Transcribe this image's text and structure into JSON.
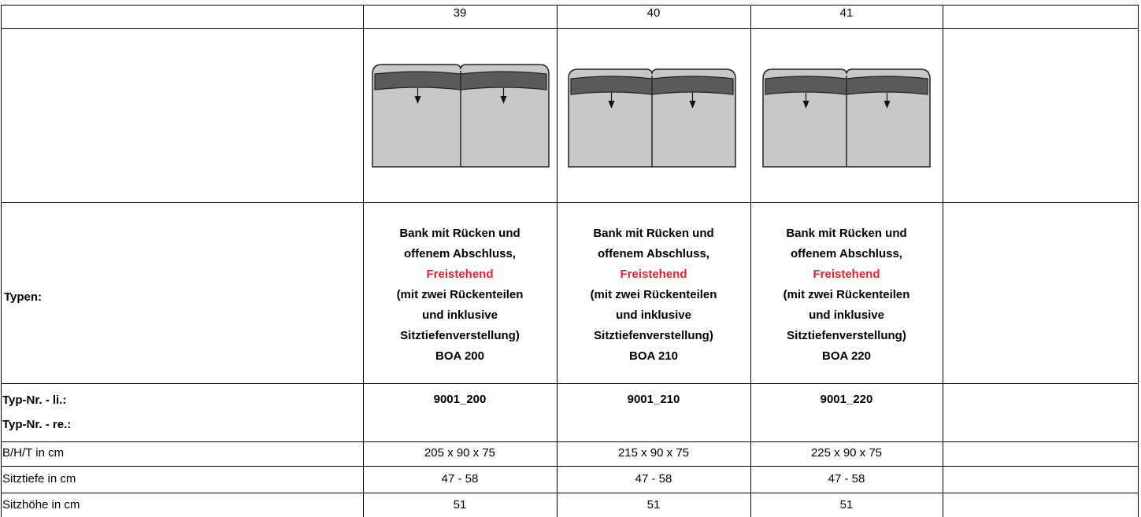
{
  "header": {
    "columns": [
      "39",
      "40",
      "41"
    ]
  },
  "types": {
    "label": "Typen:",
    "items": [
      {
        "intro": [
          "Bank mit Rücken und",
          "offenem Abschluss,"
        ],
        "highlight": "Freistehend",
        "details": [
          "(mit zwei Rückenteilen",
          "und inklusive",
          "Sitztiefenverstellung)"
        ],
        "model": "BOA 200"
      },
      {
        "intro": [
          "Bank mit Rücken und",
          "offenem Abschluss,"
        ],
        "highlight": "Freistehend",
        "details": [
          "(mit zwei Rückenteilen",
          "und inklusive",
          "Sitztiefenverstellung)"
        ],
        "model": "BOA 210"
      },
      {
        "intro": [
          "Bank mit Rücken und",
          "offenem Abschluss,"
        ],
        "highlight": "Freistehend",
        "details": [
          "(mit zwei Rückenteilen",
          "und inklusive",
          "Sitztiefenverstellung)"
        ],
        "model": "BOA 220"
      }
    ]
  },
  "type_numbers": {
    "label_left": "Typ-Nr. - li.:",
    "label_right": "Typ-Nr. - re.:",
    "values": [
      "9001_200",
      "9001_210",
      "9001_220"
    ]
  },
  "rows": [
    {
      "label": "B/H/T in cm",
      "values": [
        "205 x 90 x 75",
        "215 x 90 x 75",
        "225 x 90 x 75"
      ]
    },
    {
      "label": "Sitztiefe in cm",
      "values": [
        "47 - 58",
        "47 - 58",
        "47 - 58"
      ]
    },
    {
      "label": "Sitzhöhe in cm",
      "values": [
        "51",
        "51",
        "51"
      ]
    }
  ]
}
